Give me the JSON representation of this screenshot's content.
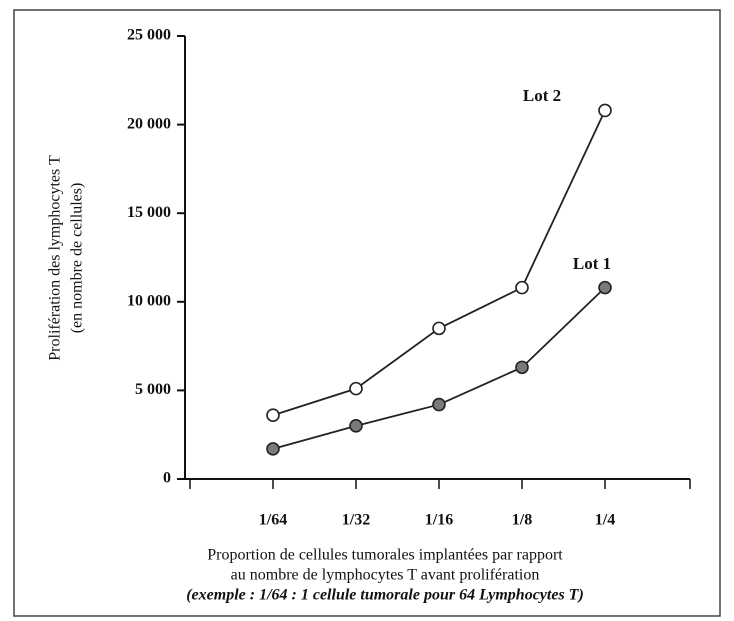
{
  "chart_data": {
    "type": "line",
    "categories": [
      "1/64",
      "1/32",
      "1/16",
      "1/8",
      "1/4"
    ],
    "series": [
      {
        "name": "Lot 1",
        "color": "#7a7a7a",
        "values": [
          1700,
          3000,
          4200,
          6300,
          10800
        ]
      },
      {
        "name": "Lot 2",
        "color": "#ffffff",
        "values": [
          3600,
          5100,
          8500,
          10800,
          20800
        ]
      }
    ],
    "ylim": [
      0,
      25000
    ],
    "yticks": [
      0,
      {
        "value": 5000,
        "label": "5 000"
      },
      {
        "value": 10000,
        "label": "10 000"
      },
      {
        "value": 15000,
        "label": "15 000"
      },
      {
        "value": 20000,
        "label": "20 000"
      },
      {
        "value": 25000,
        "label": "25 000"
      }
    ],
    "y_label": [
      "Prolifération des lymphocytes T",
      "(en nombre de cellules)"
    ],
    "x_label": [
      "Proportion de cellules tumorales implantées par rapport",
      "au nombre de lymphocytes T avant prolifération",
      "(exemple : 1/64 : 1 cellule tumorale pour 64 Lymphocytes T)"
    ]
  }
}
